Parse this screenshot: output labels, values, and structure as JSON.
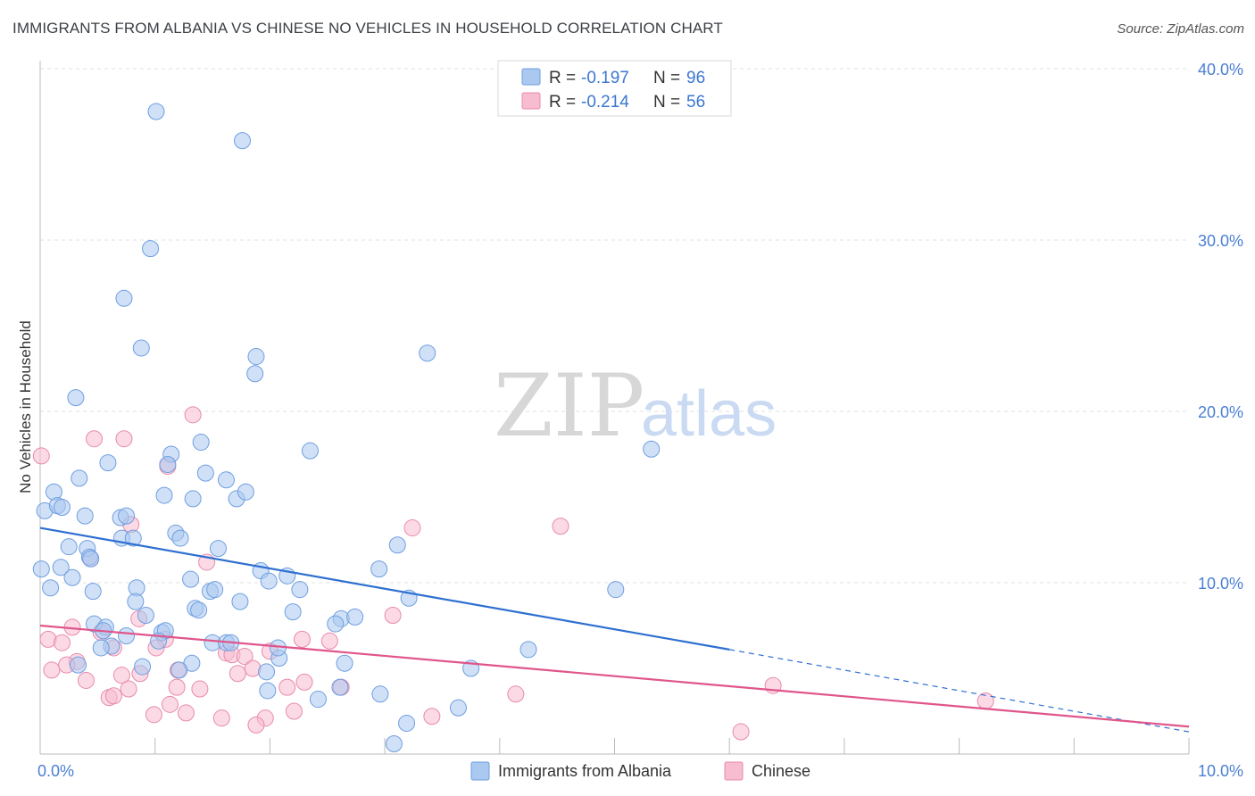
{
  "header": {
    "title": "IMMIGRANTS FROM ALBANIA VS CHINESE NO VEHICLES IN HOUSEHOLD CORRELATION CHART",
    "source_prefix": "Source: ",
    "source_site": "ZipAtlas.com"
  },
  "watermark": {
    "zip": "ZIP",
    "atlas": "atlas"
  },
  "colors": {
    "albania_fill": "#aac8f0",
    "albania_stroke": "#6e9ee0",
    "albania_line": "#2f6fd1",
    "chinese_fill": "#f7bcd0",
    "chinese_stroke": "#e88aab",
    "chinese_line": "#e0558a",
    "tick_text": "#4a7fd4",
    "grid": "#e2e2e2"
  },
  "legend": {
    "rows": [
      {
        "r_label": "R =",
        "r_value": "-0.197",
        "n_label": "N =",
        "n_value": "96"
      },
      {
        "r_label": "R =",
        "r_value": "-0.214",
        "n_label": "N =",
        "n_value": "56"
      }
    ]
  },
  "bottom_legend": {
    "items": [
      {
        "label": "Immigrants from Albania"
      },
      {
        "label": "Chinese"
      }
    ]
  },
  "chart_data": {
    "type": "scatter",
    "title": "IMMIGRANTS FROM ALBANIA VS CHINESE NO VEHICLES IN HOUSEHOLD CORRELATION CHART",
    "xlabel": "",
    "ylabel": "No Vehicles in Household",
    "xlim": [
      0,
      10
    ],
    "ylim": [
      0,
      40
    ],
    "x_ticks_labeled": [
      {
        "value": 0,
        "label": "0.0%"
      },
      {
        "value": 10,
        "label": "10.0%"
      }
    ],
    "y_ticks": [
      {
        "value": 10,
        "label": "10.0%"
      },
      {
        "value": 20,
        "label": "20.0%"
      },
      {
        "value": 30,
        "label": "30.0%"
      },
      {
        "value": 40,
        "label": "40.0%"
      }
    ],
    "grid": true,
    "legend_position": "top-center",
    "series": [
      {
        "name": "Immigrants from Albania",
        "r": -0.197,
        "n": 96,
        "trend": {
          "x0": 0,
          "y0": 13.2,
          "x1": 6.0,
          "y1": 6.1,
          "dashed_to_x": 10,
          "dashed_to_y": 1.3
        },
        "points": [
          [
            1.01,
            37.5
          ],
          [
            1.76,
            35.8
          ],
          [
            0.96,
            29.5
          ],
          [
            0.73,
            26.6
          ],
          [
            0.88,
            23.7
          ],
          [
            1.88,
            23.2
          ],
          [
            1.87,
            22.2
          ],
          [
            3.37,
            23.4
          ],
          [
            0.31,
            20.8
          ],
          [
            5.32,
            17.8
          ],
          [
            1.4,
            18.2
          ],
          [
            2.35,
            17.7
          ],
          [
            1.14,
            17.5
          ],
          [
            0.59,
            17.0
          ],
          [
            1.11,
            16.9
          ],
          [
            1.44,
            16.4
          ],
          [
            0.34,
            16.1
          ],
          [
            1.62,
            16.0
          ],
          [
            0.12,
            15.3
          ],
          [
            1.08,
            15.1
          ],
          [
            1.33,
            14.9
          ],
          [
            1.71,
            14.9
          ],
          [
            1.79,
            15.3
          ],
          [
            0.04,
            14.2
          ],
          [
            0.15,
            14.5
          ],
          [
            0.19,
            14.4
          ],
          [
            0.39,
            13.9
          ],
          [
            0.7,
            13.8
          ],
          [
            0.75,
            13.9
          ],
          [
            1.18,
            12.9
          ],
          [
            0.71,
            12.6
          ],
          [
            0.81,
            12.6
          ],
          [
            1.22,
            12.6
          ],
          [
            0.25,
            12.1
          ],
          [
            0.41,
            12.0
          ],
          [
            1.55,
            12.0
          ],
          [
            3.11,
            12.2
          ],
          [
            0.43,
            11.5
          ],
          [
            0.44,
            11.4
          ],
          [
            0.01,
            10.8
          ],
          [
            0.18,
            10.9
          ],
          [
            0.28,
            10.3
          ],
          [
            1.92,
            10.7
          ],
          [
            2.15,
            10.4
          ],
          [
            1.31,
            10.2
          ],
          [
            1.99,
            10.1
          ],
          [
            2.95,
            10.8
          ],
          [
            0.46,
            9.5
          ],
          [
            0.84,
            9.7
          ],
          [
            0.09,
            9.7
          ],
          [
            2.26,
            9.6
          ],
          [
            1.48,
            9.5
          ],
          [
            1.52,
            9.6
          ],
          [
            5.01,
            9.6
          ],
          [
            3.21,
            9.1
          ],
          [
            0.83,
            8.9
          ],
          [
            1.74,
            8.9
          ],
          [
            1.35,
            8.5
          ],
          [
            1.38,
            8.4
          ],
          [
            0.92,
            8.1
          ],
          [
            2.2,
            8.3
          ],
          [
            2.62,
            7.9
          ],
          [
            2.74,
            8.0
          ],
          [
            2.57,
            7.6
          ],
          [
            0.47,
            7.6
          ],
          [
            0.57,
            7.4
          ],
          [
            0.75,
            6.9
          ],
          [
            1.06,
            7.1
          ],
          [
            1.09,
            7.2
          ],
          [
            0.55,
            7.2
          ],
          [
            1.03,
            6.6
          ],
          [
            1.5,
            6.5
          ],
          [
            1.62,
            6.5
          ],
          [
            1.66,
            6.5
          ],
          [
            0.62,
            6.3
          ],
          [
            0.53,
            6.2
          ],
          [
            2.08,
            5.6
          ],
          [
            2.07,
            6.2
          ],
          [
            4.25,
            6.1
          ],
          [
            0.33,
            5.2
          ],
          [
            1.32,
            5.3
          ],
          [
            0.89,
            5.1
          ],
          [
            1.21,
            4.9
          ],
          [
            2.65,
            5.3
          ],
          [
            1.97,
            4.8
          ],
          [
            3.75,
            5.0
          ],
          [
            1.98,
            3.7
          ],
          [
            2.61,
            3.9
          ],
          [
            2.96,
            3.5
          ],
          [
            2.42,
            3.2
          ],
          [
            3.64,
            2.7
          ],
          [
            3.19,
            1.8
          ],
          [
            3.08,
            0.6
          ]
        ]
      },
      {
        "name": "Chinese",
        "r": -0.214,
        "n": 56,
        "trend": {
          "x0": 0,
          "y0": 7.5,
          "x1": 10,
          "y1": 1.6
        },
        "points": [
          [
            0.01,
            17.4
          ],
          [
            1.33,
            19.8
          ],
          [
            0.47,
            18.4
          ],
          [
            0.73,
            18.4
          ],
          [
            1.11,
            16.8
          ],
          [
            3.24,
            13.2
          ],
          [
            4.53,
            13.3
          ],
          [
            0.79,
            13.4
          ],
          [
            0.44,
            11.4
          ],
          [
            1.45,
            11.2
          ],
          [
            3.07,
            8.1
          ],
          [
            0.86,
            7.9
          ],
          [
            0.28,
            7.4
          ],
          [
            0.53,
            7.1
          ],
          [
            0.07,
            6.7
          ],
          [
            0.19,
            6.5
          ],
          [
            1.09,
            6.7
          ],
          [
            2.28,
            6.7
          ],
          [
            2.52,
            6.6
          ],
          [
            0.64,
            6.2
          ],
          [
            1.01,
            6.2
          ],
          [
            1.62,
            5.9
          ],
          [
            1.67,
            5.8
          ],
          [
            1.78,
            5.7
          ],
          [
            2.0,
            6.0
          ],
          [
            0.32,
            5.4
          ],
          [
            0.23,
            5.2
          ],
          [
            0.1,
            4.9
          ],
          [
            0.87,
            4.7
          ],
          [
            0.71,
            4.6
          ],
          [
            1.2,
            4.9
          ],
          [
            1.85,
            5.0
          ],
          [
            1.72,
            4.7
          ],
          [
            0.4,
            4.3
          ],
          [
            0.77,
            3.8
          ],
          [
            0.6,
            3.3
          ],
          [
            0.64,
            3.4
          ],
          [
            1.19,
            3.9
          ],
          [
            1.39,
            3.8
          ],
          [
            2.15,
            3.9
          ],
          [
            2.3,
            4.2
          ],
          [
            2.62,
            3.9
          ],
          [
            4.14,
            3.5
          ],
          [
            6.38,
            4.0
          ],
          [
            8.23,
            3.1
          ],
          [
            1.13,
            2.9
          ],
          [
            0.99,
            2.3
          ],
          [
            1.27,
            2.4
          ],
          [
            1.58,
            2.1
          ],
          [
            1.96,
            2.1
          ],
          [
            2.21,
            2.5
          ],
          [
            3.41,
            2.2
          ],
          [
            1.88,
            1.7
          ],
          [
            6.1,
            1.3
          ]
        ]
      }
    ]
  }
}
